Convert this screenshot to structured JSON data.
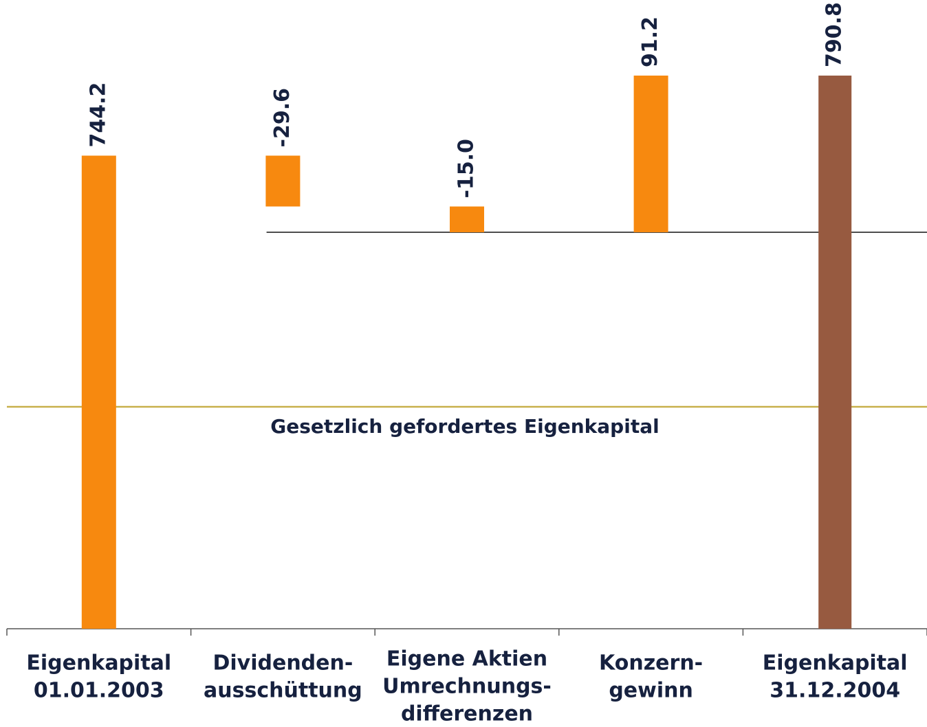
{
  "chart_data": {
    "type": "waterfall",
    "categories": [
      [
        "Eigenkapital",
        "01.01.2003"
      ],
      [
        "Dividenden-",
        "ausschüttung"
      ],
      [
        "Eigene Aktien",
        "Umrechnungs-",
        "differenzen"
      ],
      [
        "Konzern-",
        "gewinn"
      ],
      [
        "Eigenkapital",
        "31.12.2004"
      ]
    ],
    "values": [
      744.2,
      -29.6,
      -15.0,
      91.2,
      790.8
    ],
    "value_labels": [
      "744.2",
      "-29.6",
      "-15.0",
      "91.2",
      "790.8"
    ],
    "colors": [
      "#f7890f",
      "#f7890f",
      "#f7890f",
      "#f7890f",
      "#975a40"
    ],
    "annotations": [
      {
        "text": "Gesetzlich gefordertes Eigenkapital",
        "color": "#c8b04a"
      }
    ]
  }
}
